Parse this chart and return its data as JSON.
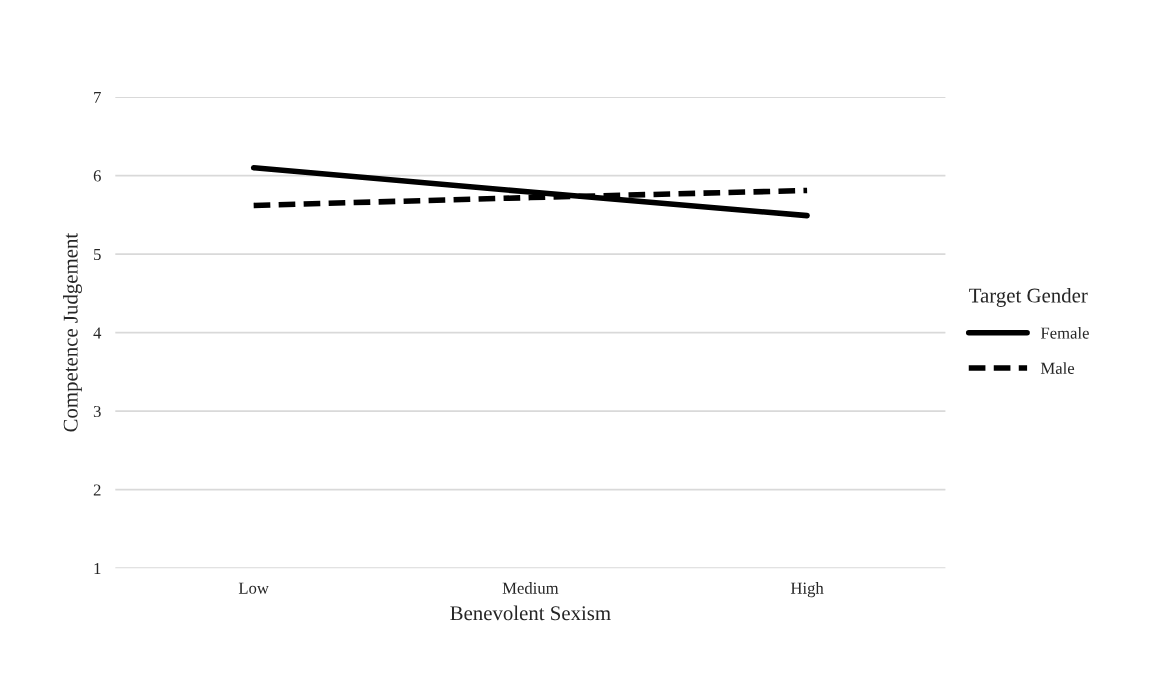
{
  "chart_data": {
    "type": "line",
    "xlabel": "Benevolent Sexism",
    "ylabel": "Competence Judgement",
    "legend_title": "Target Gender",
    "categories": [
      "Low",
      "Medium",
      "High"
    ],
    "series": [
      {
        "name": "Female",
        "color": "#000000",
        "line_style": "solid",
        "values": [
          6.1,
          5.79,
          5.49
        ]
      },
      {
        "name": "Male",
        "color": "#000000",
        "line_style": "dashed",
        "values": [
          5.62,
          5.72,
          5.81
        ]
      }
    ],
    "ylim": [
      1,
      7
    ],
    "yticks": [
      1,
      2,
      3,
      4,
      5,
      6,
      7
    ],
    "grid": "y",
    "legend": "right",
    "marker": "none"
  }
}
